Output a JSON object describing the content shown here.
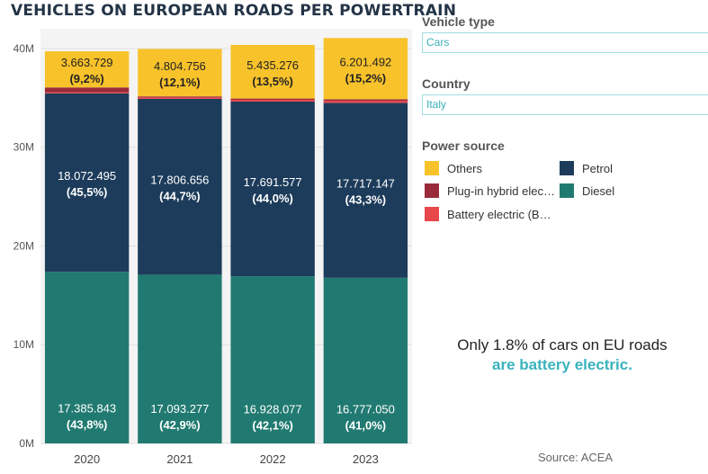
{
  "title": "VEHICLES ON EUROPEAN ROADS PER POWERTRAIN",
  "filters": {
    "vehicle_type_label": "Vehicle type",
    "vehicle_type_value": "Cars",
    "country_label": "Country",
    "country_value": "Italy"
  },
  "legend": {
    "title": "Power source",
    "items": [
      {
        "label": "Others",
        "color": "#f8c22b"
      },
      {
        "label": "Petrol",
        "color": "#1d3c5b"
      },
      {
        "label": "Plug-in hybrid elec…",
        "color": "#9a2b3a"
      },
      {
        "label": "Diesel",
        "color": "#217a71"
      },
      {
        "label": "Battery electric (B…",
        "color": "#e8474c"
      }
    ]
  },
  "callout": {
    "line1": "Only 1.8% of cars on EU roads",
    "line2": "are battery electric."
  },
  "source": "Source: ACEA",
  "chart_data": {
    "type": "bar",
    "stacked": true,
    "categories": [
      "2020",
      "2021",
      "2022",
      "2023"
    ],
    "ylim": [
      0,
      42000000
    ],
    "yticks": [
      {
        "value": 0,
        "label": "0M"
      },
      {
        "value": 10000000,
        "label": "10M"
      },
      {
        "value": 20000000,
        "label": "20M"
      },
      {
        "value": 30000000,
        "label": "30M"
      },
      {
        "value": 40000000,
        "label": "40M"
      }
    ],
    "grid": true,
    "series": [
      {
        "name": "Diesel",
        "color": "#217a71",
        "values": [
          17385843,
          17093277,
          16928077,
          16777050
        ],
        "labels": [
          "17.385.843",
          "17.093.277",
          "16.928.077",
          "16.777.050"
        ],
        "shares": [
          "(43,8%)",
          "(42,9%)",
          "(42,1%)",
          "(41,0%)"
        ],
        "label_color": "#ffffff"
      },
      {
        "name": "Petrol",
        "color": "#1d3c5b",
        "values": [
          18072495,
          17806656,
          17691577,
          17717147
        ],
        "labels": [
          "18.072.495",
          "17.806.656",
          "17.691.577",
          "17.717.147"
        ],
        "shares": [
          "(45,5%)",
          "(44,7%)",
          "(44,0%)",
          "(43,3%)"
        ],
        "label_color": "#ffffff"
      },
      {
        "name": "Battery electric (B…",
        "color": "#e8474c",
        "values": [
          99000,
          140000,
          180000,
          210000
        ]
      },
      {
        "name": "Plug-in hybrid elec…",
        "color": "#9a2b3a",
        "values": [
          500000,
          110000,
          130000,
          160000
        ]
      },
      {
        "name": "Others",
        "color": "#f8c22b",
        "values": [
          3663729,
          4804756,
          5435276,
          6201492
        ],
        "labels": [
          "3.663.729",
          "4.804.756",
          "5.435.276",
          "6.201.492"
        ],
        "shares": [
          "(9,2%)",
          "(12,1%)",
          "(13,5%)",
          "(15,2%)"
        ],
        "label_color": "#222222"
      }
    ]
  }
}
